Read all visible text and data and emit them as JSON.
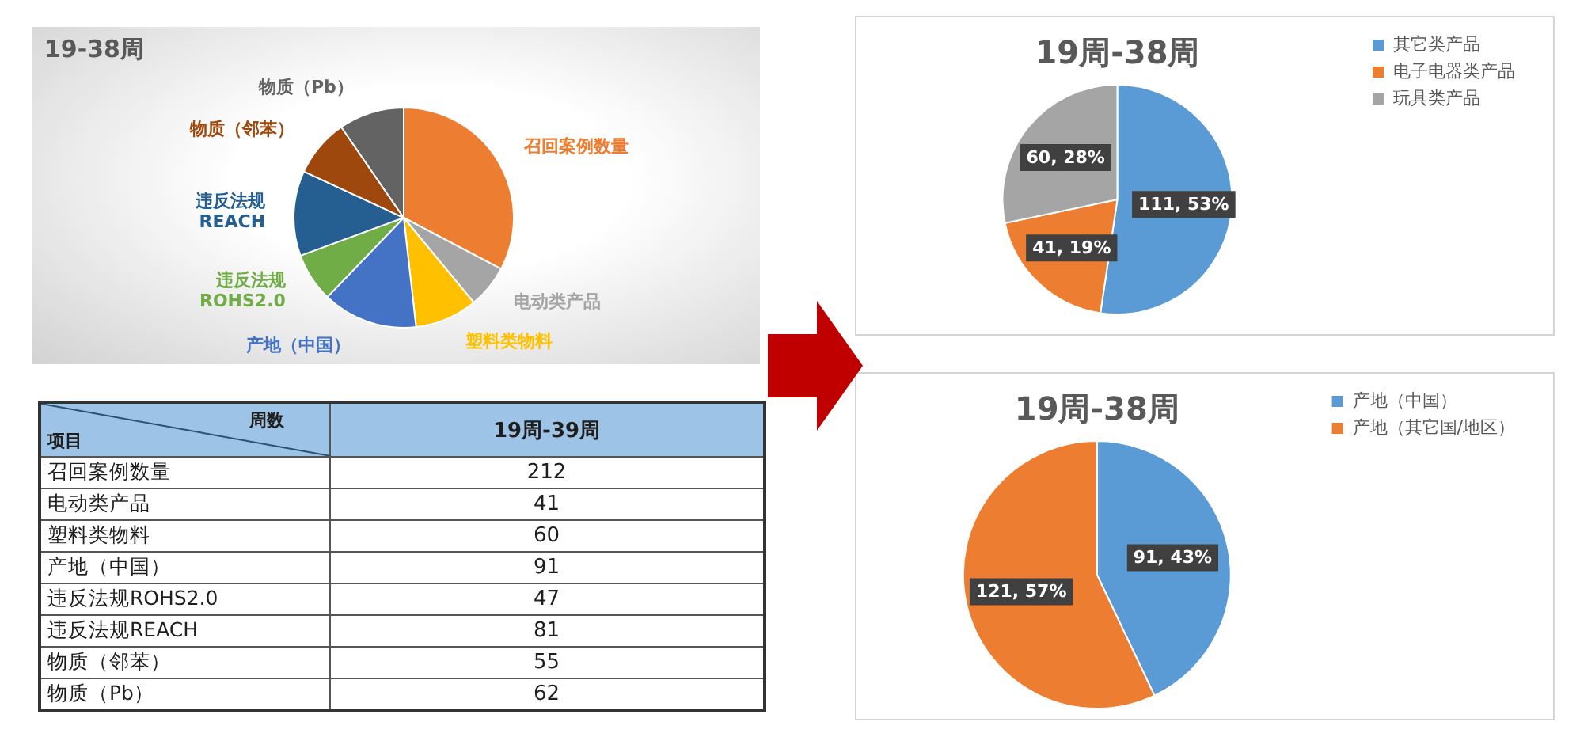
{
  "chart_data": [
    {
      "type": "pie",
      "title": "19-38周",
      "categories": [
        "召回案例数量",
        "电动类产品",
        "塑料类物料",
        "产地（中国）",
        "违反法规ROHS2.0",
        "违反法规REACH",
        "物质（邻苯）",
        "物质（Pb）"
      ],
      "values": [
        32.7,
        6.3,
        9.2,
        14.0,
        7.2,
        12.5,
        8.5,
        9.6
      ],
      "colors": [
        "#ed7d31",
        "#a5a5a5",
        "#ffc000",
        "#4472c4",
        "#70ad47",
        "#255e91",
        "#9e480e",
        "#636363"
      ],
      "legend": false
    },
    {
      "type": "pie",
      "title": "19周-38周",
      "categories": [
        "其它类产品",
        "电子电器类产品",
        "玩具类产品"
      ],
      "values": [
        111,
        41,
        60
      ],
      "colors": [
        "#5b9bd5",
        "#ed7d31",
        "#a5a5a5"
      ],
      "value_labels": [
        "111, 53%",
        "41, 19%",
        "60, 28%"
      ],
      "legend": "top right"
    },
    {
      "type": "other",
      "categories": [
        "召回案例数量",
        "电动类产品",
        "塑料类物料",
        "产地（中国）",
        "违反法规ROHS2.0",
        "违反法规REACH",
        "物质（邻苯）",
        "物质（Pb）"
      ],
      "series": [
        {
          "name": "19周-39周",
          "values": [
            212,
            41,
            60,
            91,
            47,
            81,
            55,
            62
          ]
        }
      ],
      "xlabel": "项目",
      "ylabel": "周数",
      "data_labels": true
    },
    {
      "type": "pie",
      "title": "19周-38周",
      "categories": [
        "产地（中国）",
        "产地（其它国/地区）"
      ],
      "values": [
        91,
        121
      ],
      "colors": [
        "#5b9bd5",
        "#ed7d31"
      ],
      "value_labels": [
        "91, 43%",
        "121, 57%"
      ],
      "legend": "top right"
    }
  ]
}
